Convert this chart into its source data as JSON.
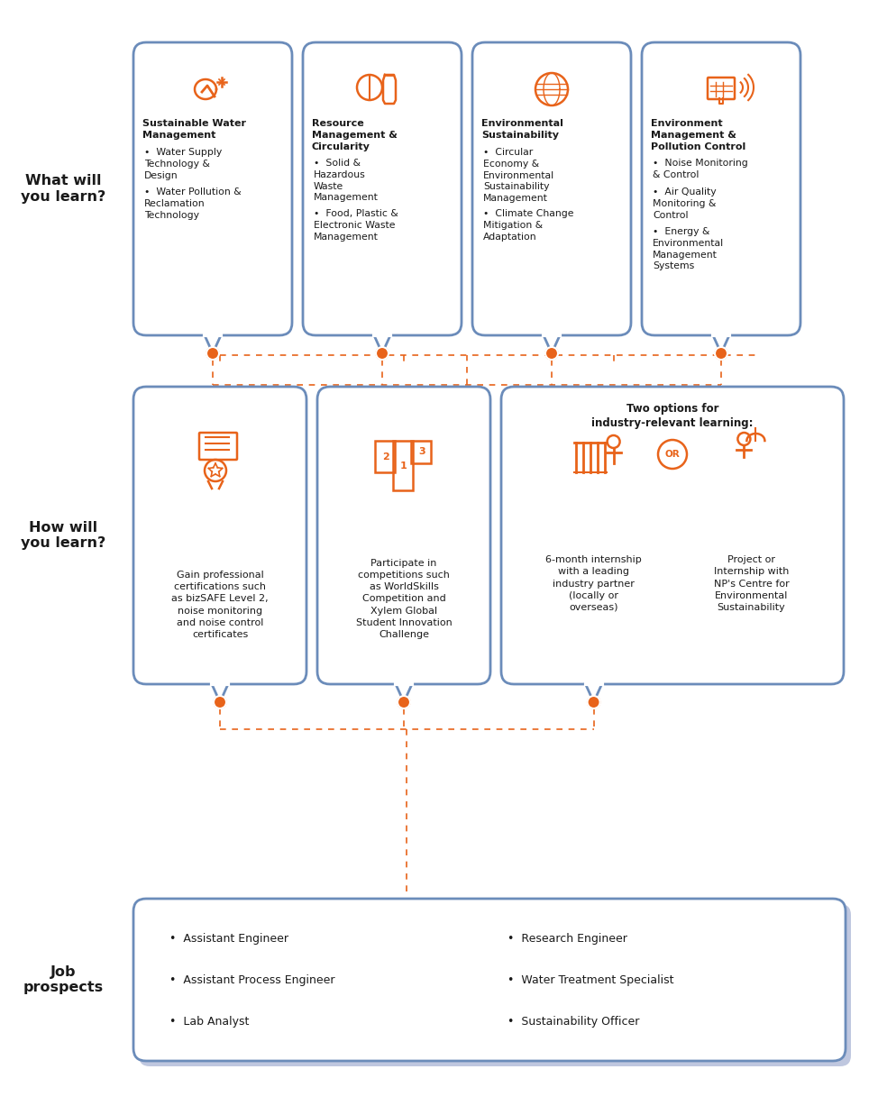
{
  "bg_color": "#ffffff",
  "border_color": "#6b8cba",
  "orange_color": "#e8631a",
  "text_color": "#1a1a1a",
  "what_label": "What will\nyou learn?",
  "how_label": "How will\nyou learn?",
  "job_label": "Job\nprospects",
  "top_titles": [
    "Sustainable Water\nManagement",
    "Resource\nManagement &\nCircularity",
    "Environmental\nSustainability",
    "Environment\nManagement &\nPollution Control"
  ],
  "top_bullets": [
    [
      "Water Supply\nTechnology &\nDesign",
      "Water Pollution &\nReclamation\nTechnology"
    ],
    [
      "Solid &\nHazardous\nWaste\nManagement",
      "Food, Plastic &\nElectronic Waste\nManagement"
    ],
    [
      "Circular\nEconomy &\nEnvironmental\nSustainability\nManagement",
      "Climate Change\nMitigation &\nAdaptation"
    ],
    [
      "Noise Monitoring\n& Control",
      "Air Quality\nMonitoring &\nControl",
      "Energy &\nEnvironmental\nManagement\nSystems"
    ]
  ],
  "how_texts": [
    "Gain professional\ncertifications such\nas bizSAFE Level 2,\nnoise monitoring\nand noise control\ncertificates",
    "Participate in\ncompetitions such\nas WorldSkills\nCompetition and\nXylem Global\nStudent Innovation\nChallenge"
  ],
  "how_two_title": "Two options for\nindustry-relevant learning:",
  "how_option1": "6-month internship\nwith a leading\nindustry partner\n(locally or\noverseas)",
  "how_option2": "Project or\nInternship with\nNP's Centre for\nEnvironmental\nSustainability",
  "job_left": [
    "Assistant Engineer",
    "Assistant Process Engineer",
    "Lab Analyst"
  ],
  "job_right": [
    "Research Engineer",
    "Water Treatment Specialist",
    "Sustainability Officer"
  ]
}
